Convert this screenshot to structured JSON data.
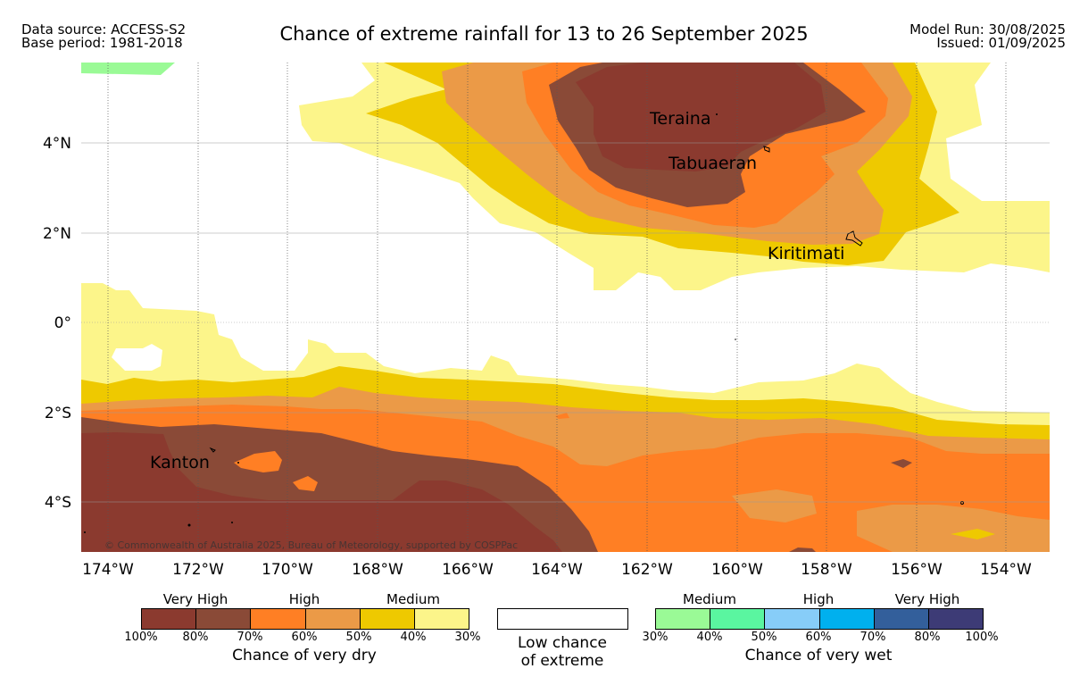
{
  "header": {
    "source_line": "Data source: ACCESS-S2",
    "base_line": "Base period: 1981-2018",
    "title": "Chance of extreme rainfall for 13 to 26 September 2025",
    "model_run": "Model Run: 30/08/2025",
    "issued": "Issued: 01/09/2025"
  },
  "map": {
    "lon_labels": [
      "174°W",
      "172°W",
      "170°W",
      "168°W",
      "166°W",
      "164°W",
      "162°W",
      "160°W",
      "158°W",
      "156°W",
      "154°W"
    ],
    "lat_labels": [
      "4°N",
      "2°N",
      "0°",
      "2°S",
      "4°S"
    ],
    "places": [
      "Teraina",
      "Tabuaeran",
      "Kiritimati",
      "Kanton"
    ],
    "copyright": "© Commonwealth of Australia 2025, Bureau of Meteorology, supported by COSPPac"
  },
  "legend": {
    "dry": {
      "categories": [
        "Very High",
        "High",
        "Medium"
      ],
      "ticks": [
        "100%",
        "80%",
        "70%",
        "60%",
        "50%",
        "40%",
        "30%"
      ],
      "caption": "Chance of very dry",
      "colors": [
        "#8b3a2f",
        "#8a4a37",
        "#ff7f24",
        "#eb9a47",
        "#eec900",
        "#fcf58a"
      ]
    },
    "low": {
      "caption_line1": "Low chance",
      "caption_line2": "of extreme"
    },
    "wet": {
      "categories": [
        "Medium",
        "High",
        "Very High"
      ],
      "ticks": [
        "30%",
        "40%",
        "50%",
        "60%",
        "70%",
        "80%",
        "100%"
      ],
      "caption": "Chance of very wet",
      "colors": [
        "#9afa96",
        "#5af6a0",
        "#87cdf8",
        "#00b0ee",
        "#335f9b",
        "#3d3b76"
      ]
    }
  }
}
